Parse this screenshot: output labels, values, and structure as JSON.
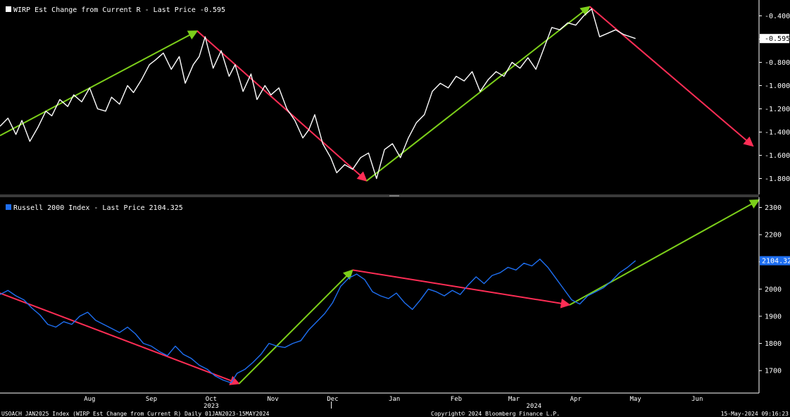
{
  "chart_data": [
    {
      "type": "line",
      "legend": "WIRP Est Change from Current R - Last Price -0.595",
      "series_color": "#ffffff",
      "last_value_label": "-0.595",
      "last_value": -0.595,
      "ylim": [
        -1.9,
        -0.3
      ],
      "y_ticks": [
        "-0.400",
        "-0.600",
        "-0.800",
        "-1.000",
        "-1.200",
        "-1.400",
        "-1.600",
        "-1.800"
      ],
      "y_tick_values": [
        -0.4,
        -0.6,
        -0.8,
        -1.0,
        -1.2,
        -1.4,
        -1.6,
        -1.8
      ],
      "series": [
        {
          "name": "WIRP Est Change from Current R",
          "x": [
            "2023-07-01",
            "2023-07-05",
            "2023-07-09",
            "2023-07-12",
            "2023-07-16",
            "2023-07-20",
            "2023-07-24",
            "2023-07-27",
            "2023-07-31",
            "2023-08-04",
            "2023-08-07",
            "2023-08-11",
            "2023-08-15",
            "2023-08-19",
            "2023-08-23",
            "2023-08-26",
            "2023-08-30",
            "2023-09-03",
            "2023-09-06",
            "2023-09-10",
            "2023-09-14",
            "2023-09-17",
            "2023-09-21",
            "2023-09-25",
            "2023-09-29",
            "2023-10-02",
            "2023-10-06",
            "2023-10-09",
            "2023-10-12",
            "2023-10-16",
            "2023-10-20",
            "2023-10-24",
            "2023-10-27",
            "2023-10-31",
            "2023-11-04",
            "2023-11-07",
            "2023-11-11",
            "2023-11-14",
            "2023-11-18",
            "2023-11-22",
            "2023-11-26",
            "2023-11-30",
            "2023-12-03",
            "2023-12-06",
            "2023-12-10",
            "2023-12-14",
            "2023-12-17",
            "2023-12-21",
            "2023-12-25",
            "2023-12-29",
            "2024-01-02",
            "2024-01-06",
            "2024-01-10",
            "2024-01-14",
            "2024-01-18",
            "2024-01-22",
            "2024-01-26",
            "2024-01-30",
            "2024-02-03",
            "2024-02-07",
            "2024-02-11",
            "2024-02-15",
            "2024-02-19",
            "2024-02-23",
            "2024-02-27",
            "2024-03-02",
            "2024-03-06",
            "2024-03-10",
            "2024-03-14",
            "2024-03-18",
            "2024-03-22",
            "2024-03-26",
            "2024-03-30",
            "2024-04-03",
            "2024-04-07",
            "2024-04-11",
            "2024-04-15",
            "2024-04-19",
            "2024-04-23",
            "2024-04-27",
            "2024-05-01",
            "2024-05-05",
            "2024-05-09",
            "2024-05-15"
          ],
          "values": [
            -1.35,
            -1.28,
            -1.42,
            -1.3,
            -1.48,
            -1.36,
            -1.22,
            -1.26,
            -1.12,
            -1.18,
            -1.08,
            -1.14,
            -1.02,
            -1.2,
            -1.22,
            -1.1,
            -1.16,
            -1.0,
            -1.06,
            -0.95,
            -0.82,
            -0.78,
            -0.72,
            -0.86,
            -0.75,
            -0.98,
            -0.82,
            -0.75,
            -0.58,
            -0.85,
            -0.7,
            -0.92,
            -0.82,
            -1.05,
            -0.9,
            -1.12,
            -1.0,
            -1.08,
            -1.02,
            -1.2,
            -1.3,
            -1.45,
            -1.38,
            -1.25,
            -1.5,
            -1.62,
            -1.75,
            -1.68,
            -1.72,
            -1.62,
            -1.58,
            -1.8,
            -1.55,
            -1.5,
            -1.62,
            -1.45,
            -1.32,
            -1.25,
            -1.05,
            -0.98,
            -1.02,
            -0.92,
            -0.96,
            -0.88,
            -1.05,
            -0.95,
            -0.88,
            -0.92,
            -0.8,
            -0.85,
            -0.76,
            -0.86,
            -0.68,
            -0.5,
            -0.52,
            -0.46,
            -0.48,
            -0.4,
            -0.34,
            -0.58,
            -0.55,
            -0.52,
            -0.56,
            -0.595
          ]
        }
      ],
      "trend_arrows": [
        {
          "color": "#7ccf1a",
          "from": [
            "2023-07-01",
            -1.43
          ],
          "to": [
            "2023-10-08",
            -0.53
          ]
        },
        {
          "color": "#ff2d55",
          "from": [
            "2023-10-08",
            -0.53
          ],
          "to": [
            "2024-01-01",
            -1.82
          ]
        },
        {
          "color": "#7ccf1a",
          "from": [
            "2024-01-01",
            -1.82
          ],
          "to": [
            "2024-04-22",
            -0.32
          ]
        },
        {
          "color": "#ff2d55",
          "from": [
            "2024-04-22",
            -0.32
          ],
          "to": [
            "2024-07-13",
            -1.52
          ]
        }
      ]
    },
    {
      "type": "line",
      "legend": "Russell 2000 Index - Last Price 2104.325",
      "series_color": "#1e6ff2",
      "last_value_label": "2104.325",
      "last_value": 2104.325,
      "ylim": [
        1620,
        2330
      ],
      "y_ticks": [
        "2300",
        "2200",
        "2100",
        "2000",
        "1900",
        "1800",
        "1700"
      ],
      "y_tick_values": [
        2300,
        2200,
        2100,
        2000,
        1900,
        1800,
        1700
      ],
      "series": [
        {
          "name": "Russell 2000 Index",
          "x": [
            "2023-07-01",
            "2023-07-05",
            "2023-07-09",
            "2023-07-13",
            "2023-07-17",
            "2023-07-21",
            "2023-07-25",
            "2023-07-29",
            "2023-08-02",
            "2023-08-06",
            "2023-08-10",
            "2023-08-14",
            "2023-08-18",
            "2023-08-22",
            "2023-08-26",
            "2023-08-30",
            "2023-09-03",
            "2023-09-07",
            "2023-09-11",
            "2023-09-15",
            "2023-09-19",
            "2023-09-23",
            "2023-09-27",
            "2023-10-01",
            "2023-10-05",
            "2023-10-09",
            "2023-10-13",
            "2023-10-17",
            "2023-10-21",
            "2023-10-25",
            "2023-10-28",
            "2023-11-01",
            "2023-11-05",
            "2023-11-09",
            "2023-11-13",
            "2023-11-17",
            "2023-11-21",
            "2023-11-25",
            "2023-11-29",
            "2023-12-03",
            "2023-12-07",
            "2023-12-11",
            "2023-12-15",
            "2023-12-19",
            "2023-12-23",
            "2023-12-27",
            "2023-12-31",
            "2024-01-04",
            "2024-01-08",
            "2024-01-12",
            "2024-01-16",
            "2024-01-20",
            "2024-01-24",
            "2024-01-28",
            "2024-02-01",
            "2024-02-05",
            "2024-02-09",
            "2024-02-13",
            "2024-02-17",
            "2024-02-21",
            "2024-02-25",
            "2024-02-29",
            "2024-03-04",
            "2024-03-08",
            "2024-03-12",
            "2024-03-16",
            "2024-03-20",
            "2024-03-24",
            "2024-03-28",
            "2024-04-01",
            "2024-04-05",
            "2024-04-09",
            "2024-04-13",
            "2024-04-17",
            "2024-04-21",
            "2024-04-25",
            "2024-04-29",
            "2024-05-03",
            "2024-05-07",
            "2024-05-11",
            "2024-05-15"
          ],
          "values": [
            1980,
            1995,
            1975,
            1960,
            1930,
            1905,
            1870,
            1860,
            1880,
            1870,
            1900,
            1915,
            1885,
            1870,
            1855,
            1840,
            1860,
            1835,
            1800,
            1790,
            1770,
            1755,
            1790,
            1760,
            1745,
            1720,
            1705,
            1680,
            1665,
            1655,
            1690,
            1705,
            1730,
            1760,
            1800,
            1790,
            1785,
            1800,
            1810,
            1850,
            1880,
            1910,
            1950,
            2010,
            2040,
            2055,
            2035,
            1990,
            1975,
            1965,
            1985,
            1950,
            1925,
            1960,
            2000,
            1990,
            1975,
            1995,
            1980,
            2015,
            2045,
            2020,
            2050,
            2060,
            2080,
            2070,
            2095,
            2085,
            2110,
            2080,
            2040,
            2000,
            1960,
            1945,
            1975,
            1990,
            2005,
            2030,
            2060,
            2080,
            2104.325
          ]
        }
      ],
      "trend_arrows": [
        {
          "color": "#ff2d55",
          "from": [
            "2023-07-01",
            1985
          ],
          "to": [
            "2023-10-29",
            1652
          ]
        },
        {
          "color": "#7ccf1a",
          "from": [
            "2023-10-29",
            1652
          ],
          "to": [
            "2023-12-25",
            2070
          ]
        },
        {
          "color": "#ff2d55",
          "from": [
            "2023-12-25",
            2070
          ],
          "to": [
            "2024-04-12",
            1942
          ]
        },
        {
          "color": "#7ccf1a",
          "from": [
            "2024-04-12",
            1942
          ],
          "to": [
            "2024-07-16",
            2328
          ]
        }
      ]
    }
  ],
  "x_axis": {
    "start": "2023-07-01",
    "end": "2024-07-16",
    "months": [
      {
        "label": "Aug",
        "date": "2023-08-15"
      },
      {
        "label": "Sep",
        "date": "2023-09-15"
      },
      {
        "label": "Oct",
        "date": "2023-10-15"
      },
      {
        "label": "Nov",
        "date": "2023-11-15"
      },
      {
        "label": "Dec",
        "date": "2023-12-15"
      },
      {
        "label": "Jan",
        "date": "2024-01-15"
      },
      {
        "label": "Feb",
        "date": "2024-02-15"
      },
      {
        "label": "Mar",
        "date": "2024-03-15"
      },
      {
        "label": "Apr",
        "date": "2024-04-15"
      },
      {
        "label": "May",
        "date": "2024-05-15"
      },
      {
        "label": "Jun",
        "date": "2024-06-15"
      }
    ],
    "years": [
      {
        "label": "2023",
        "date": "2023-10-15"
      },
      {
        "label": "2024",
        "date": "2024-03-25"
      }
    ],
    "year_divider_date": "2024-01-01"
  },
  "footer": {
    "left": "USOACH JAN2025 Index (WIRP Est Change from Current R)  Daily 01JAN2023-15MAY2024",
    "center": "Copyright© 2024 Bloomberg Finance L.P.",
    "right": "15-May-2024 09:16:23"
  },
  "colors": {
    "background": "#000000",
    "axis": "#ffffff",
    "up_arrow": "#7ccf1a",
    "down_arrow": "#ff2d55",
    "panel_divider": "#3a3a3a"
  }
}
